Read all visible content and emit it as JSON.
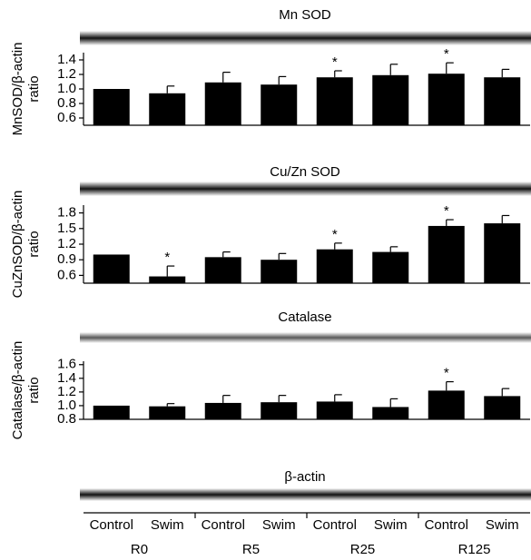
{
  "chart_data": [
    {
      "type": "bar",
      "title": "Mn SOD",
      "ylabel": [
        "MnSOD/β-actin",
        "ratio"
      ],
      "values": [
        1.0,
        0.94,
        1.09,
        1.06,
        1.16,
        1.19,
        1.21,
        1.16
      ],
      "errors": [
        0,
        0.1,
        0.14,
        0.11,
        0.09,
        0.15,
        0.15,
        0.11
      ],
      "star_labels": [
        null,
        null,
        null,
        null,
        "*",
        null,
        "*",
        null
      ],
      "color": "#000000",
      "ylim": [
        0.5,
        1.5
      ],
      "yticks": [
        0.6,
        0.8,
        {
          "value": 1.0,
          "label": "1.0"
        },
        1.2,
        1.4
      ]
    },
    {
      "type": "bar",
      "title": "Cu/Zn SOD",
      "ylabel": [
        "CuZnSOD/β-actin",
        "ratio"
      ],
      "values": [
        1.0,
        0.58,
        0.95,
        0.9,
        1.1,
        1.05,
        1.55,
        1.6
      ],
      "errors": [
        0,
        0.2,
        0.1,
        0.12,
        0.12,
        0.1,
        0.12,
        0.15
      ],
      "star_labels": [
        null,
        "*",
        null,
        null,
        "*",
        null,
        "*",
        null
      ],
      "color": "#000000",
      "ylim": [
        0.45,
        1.95
      ],
      "yticks": [
        0.6,
        0.9,
        1.2,
        1.5,
        1.8
      ]
    },
    {
      "type": "bar",
      "title": "Catalase",
      "ylabel": [
        "Catalase/β-actin",
        "ratio"
      ],
      "values": [
        1.0,
        0.99,
        1.04,
        1.05,
        1.06,
        0.98,
        1.22,
        1.14
      ],
      "errors": [
        0,
        0.04,
        0.11,
        0.1,
        0.1,
        0.12,
        0.13,
        0.11
      ],
      "star_labels": [
        null,
        null,
        null,
        null,
        null,
        null,
        "*",
        null
      ],
      "color": "#000000",
      "ylim": [
        0.8,
        1.65
      ],
      "yticks": [
        0.8,
        {
          "value": 1.0,
          "label": "1.0"
        },
        1.2,
        1.4,
        1.6
      ]
    }
  ],
  "loading_control": {
    "title": "β-actin"
  },
  "x_axis": {
    "categories": [
      "Control",
      "Swim",
      "Control",
      "Swim",
      "Control",
      "Swim",
      "Control",
      "Swim"
    ],
    "groups": [
      "R0",
      "R5",
      "R25",
      "R125"
    ]
  }
}
